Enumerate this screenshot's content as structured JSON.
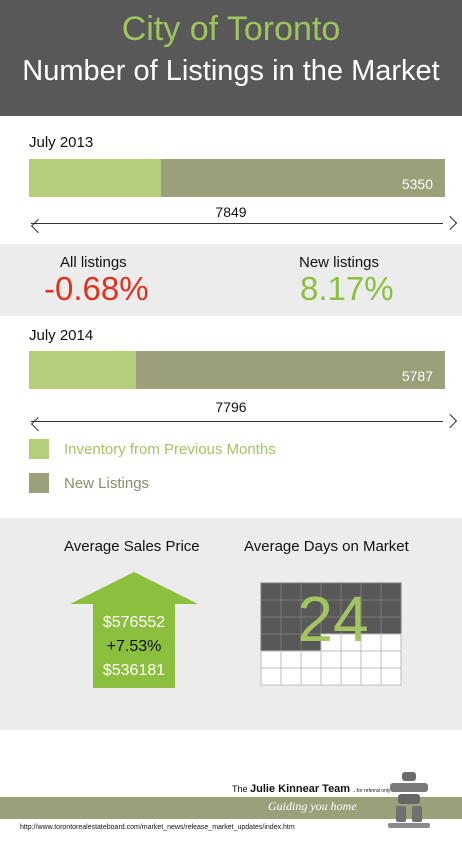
{
  "header": {
    "title": "City of Toronto",
    "subtitle": "Number of Listings in the Market"
  },
  "colors": {
    "header_bg": "#585858",
    "title_green": "#9fc55e",
    "inventory_prev": "#b5ce7c",
    "new_listings": "#9b9f7a",
    "negative": "#e0311d",
    "positive": "#8dbf3e",
    "band_bg": "#ececec"
  },
  "chart_data": [
    {
      "type": "bar",
      "orientation": "horizontal-stacked",
      "categories": [
        "July 2013",
        "July 2014"
      ],
      "series": [
        {
          "name": "Inventory from Previous Months",
          "values": [
            2499,
            2009
          ]
        },
        {
          "name": "New Listings",
          "values": [
            5350,
            5787
          ]
        }
      ],
      "totals": [
        7849,
        7796
      ],
      "legend": "below"
    }
  ],
  "periods": [
    {
      "label": "July 2013",
      "new_label": "5350",
      "total_label": "7849"
    },
    {
      "label": "July 2014",
      "new_label": "5787",
      "total_label": "7796"
    }
  ],
  "changes": {
    "all_label": "All listings",
    "all_value": "-0.68%",
    "new_label": "New listings",
    "new_value": "8.17%"
  },
  "legend": {
    "inventory": "Inventory from Previous Months",
    "new": "New Listings"
  },
  "stats": {
    "price_title": "Average Sales Price",
    "price_current": "$576552",
    "price_change": "+7.53%",
    "price_previous": "$536181",
    "days_title": "Average Days on Market",
    "days_value": "24",
    "days_number": 24
  },
  "footer": {
    "team_prefix": "The",
    "team_name": "Julie Kinnear Team",
    "team_suffix": "...for referral only™",
    "tagline": "Guiding you home",
    "source_url": "http://www.torontorealestateboard.com/market_news/release_market_updates/index.htm"
  }
}
